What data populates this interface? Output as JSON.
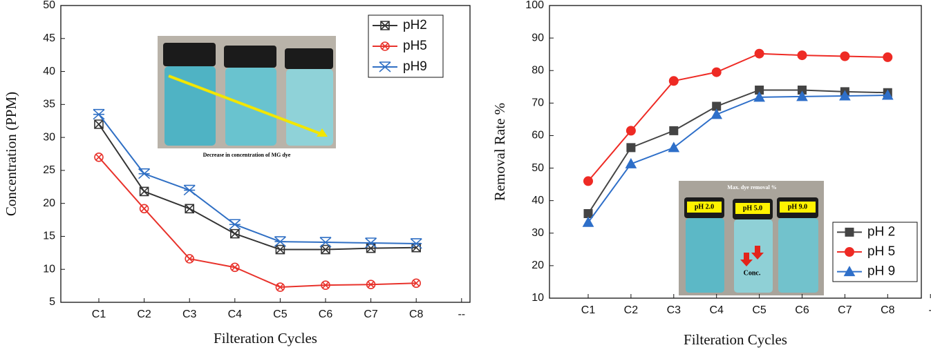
{
  "chart_data": [
    {
      "type": "line",
      "x_label": "Filteration Cycles",
      "y_label": "Concentration (PPM)",
      "categories": [
        "C1",
        "C2",
        "C3",
        "C4",
        "C5",
        "C6",
        "C7",
        "C8",
        "--"
      ],
      "ylim": [
        5,
        50
      ],
      "yticks": [
        5,
        10,
        15,
        20,
        25,
        30,
        35,
        40,
        45,
        50
      ],
      "series": [
        {
          "name": "pH2",
          "color": "#333333",
          "marker": "square-x",
          "values": [
            32,
            21.8,
            19.2,
            15.4,
            13,
            13,
            13.2,
            13.3,
            null
          ]
        },
        {
          "name": "pH5",
          "color": "#e8322b",
          "marker": "circle-x",
          "values": [
            27,
            19.2,
            11.6,
            10.3,
            7.3,
            7.6,
            7.7,
            7.9,
            null
          ]
        },
        {
          "name": "pH9",
          "color": "#2f6fc4",
          "marker": "star",
          "values": [
            33.5,
            24.5,
            22,
            16.8,
            14.2,
            14.1,
            14,
            13.9,
            null
          ]
        }
      ],
      "inset_labels": [
        "Decrease in concentration of MG dye"
      ]
    },
    {
      "type": "line",
      "x_label": "Filteration Cycles",
      "y_label": "Removal Rate %",
      "categories": [
        "C1",
        "C2",
        "C3",
        "C4",
        "C5",
        "C6",
        "C7",
        "C8",
        "-"
      ],
      "ylim": [
        10,
        100
      ],
      "yticks": [
        10,
        20,
        30,
        40,
        50,
        60,
        70,
        80,
        90,
        100
      ],
      "series": [
        {
          "name": "pH 2",
          "color": "#444444",
          "marker": "square",
          "values": [
            36,
            56.3,
            61.5,
            69,
            74,
            74,
            73.5,
            73.2,
            null
          ]
        },
        {
          "name": "pH 5",
          "color": "#ee2a24",
          "marker": "circle",
          "values": [
            46,
            61.5,
            76.8,
            79.5,
            85.2,
            84.7,
            84.4,
            84.1,
            null
          ]
        },
        {
          "name": "pH 9",
          "color": "#2e6fc9",
          "marker": "triangle",
          "values": [
            33.3,
            51.3,
            56.3,
            66.5,
            71.8,
            72,
            72.2,
            72.4,
            null
          ]
        }
      ],
      "inset_labels": [
        "Max. dye removal %",
        "pH 2.0",
        "pH 5.0",
        "pH 9.0",
        "Conc."
      ]
    }
  ]
}
